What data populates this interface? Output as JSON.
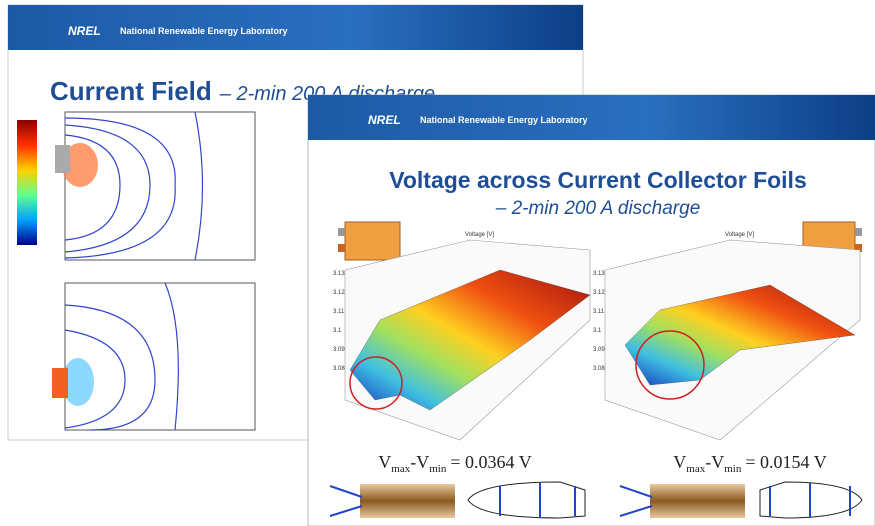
{
  "back_slide": {
    "header": {
      "logo": "NREL",
      "lab": "National Renewable Energy Laboratory"
    },
    "title": "Current Field",
    "subtitle": "– 2-min 200 A discharge"
  },
  "front_slide": {
    "header": {
      "logo": "NREL",
      "lab": "National Renewable Energy Laboratory"
    },
    "title": "Voltage across Current Collector Foils",
    "subtitle": "– 2-min 200 A discharge",
    "plots": [
      {
        "label": "Voltage [V]",
        "zticks": [
          "3.13",
          "3.12",
          "3.11",
          "3.1",
          "3.09",
          "3.08"
        ],
        "equation": {
          "v1": "V",
          "sub1": "max",
          "mid": "-V",
          "sub2": "min",
          "rhs": "= 0.0364 V"
        }
      },
      {
        "label": "Voltage [V]",
        "zticks": [
          "3.13",
          "3.12",
          "3.11",
          "3.1",
          "3.09",
          "3.08"
        ],
        "equation": {
          "v1": "V",
          "sub1": "max",
          "mid": "-V",
          "sub2": "min",
          "rhs": "= 0.0154 V"
        }
      }
    ]
  }
}
